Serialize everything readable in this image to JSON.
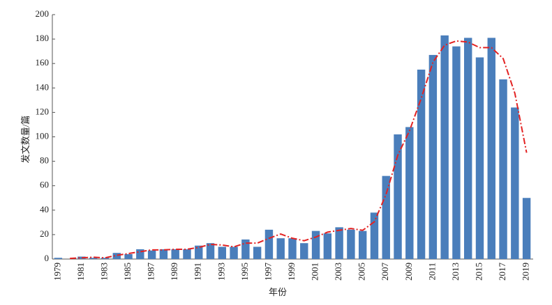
{
  "chart_data": {
    "type": "bar",
    "xlabel": "年份",
    "ylabel": "发文数量/篇",
    "categories": [
      "1979",
      null,
      "1981",
      null,
      "1983",
      null,
      "1985",
      null,
      "1987",
      null,
      "1989",
      null,
      "1991",
      null,
      "1993",
      null,
      "1995",
      null,
      "1997",
      null,
      "1999",
      null,
      "2001",
      null,
      "2003",
      null,
      "2005",
      null,
      "2007",
      null,
      "2009",
      null,
      "2011",
      null,
      "2013",
      null,
      "2015",
      null,
      "2017",
      null,
      "2019"
    ],
    "series": [
      {
        "type": "bar",
        "color": "#4a7ebb",
        "values": [
          1,
          0,
          2,
          1,
          1,
          5,
          4,
          8,
          7,
          8,
          8,
          8,
          11,
          13,
          10,
          10,
          16,
          10,
          24,
          17,
          17,
          13,
          23,
          21,
          26,
          24,
          23,
          38,
          68,
          102,
          108,
          155,
          167,
          183,
          174,
          181,
          165,
          181,
          147,
          124,
          50
        ]
      },
      {
        "type": "line",
        "color": "#e32222",
        "dashed": true,
        "values": [
          null,
          0.5,
          1,
          1.5,
          1,
          3,
          4.5,
          6,
          7.5,
          7.5,
          8,
          8,
          9.5,
          12,
          11.5,
          10,
          13,
          13,
          17,
          20.5,
          17,
          15,
          18,
          22,
          23.5,
          25,
          23.5,
          30.5,
          53,
          85,
          105,
          131.5,
          161,
          175,
          178.5,
          177.5,
          173,
          173,
          164,
          135.5,
          87
        ]
      }
    ],
    "ylim": [
      0,
      200
    ],
    "yticks": [
      0,
      20,
      40,
      60,
      80,
      100,
      120,
      140,
      160,
      180,
      200
    ],
    "grid": false
  }
}
